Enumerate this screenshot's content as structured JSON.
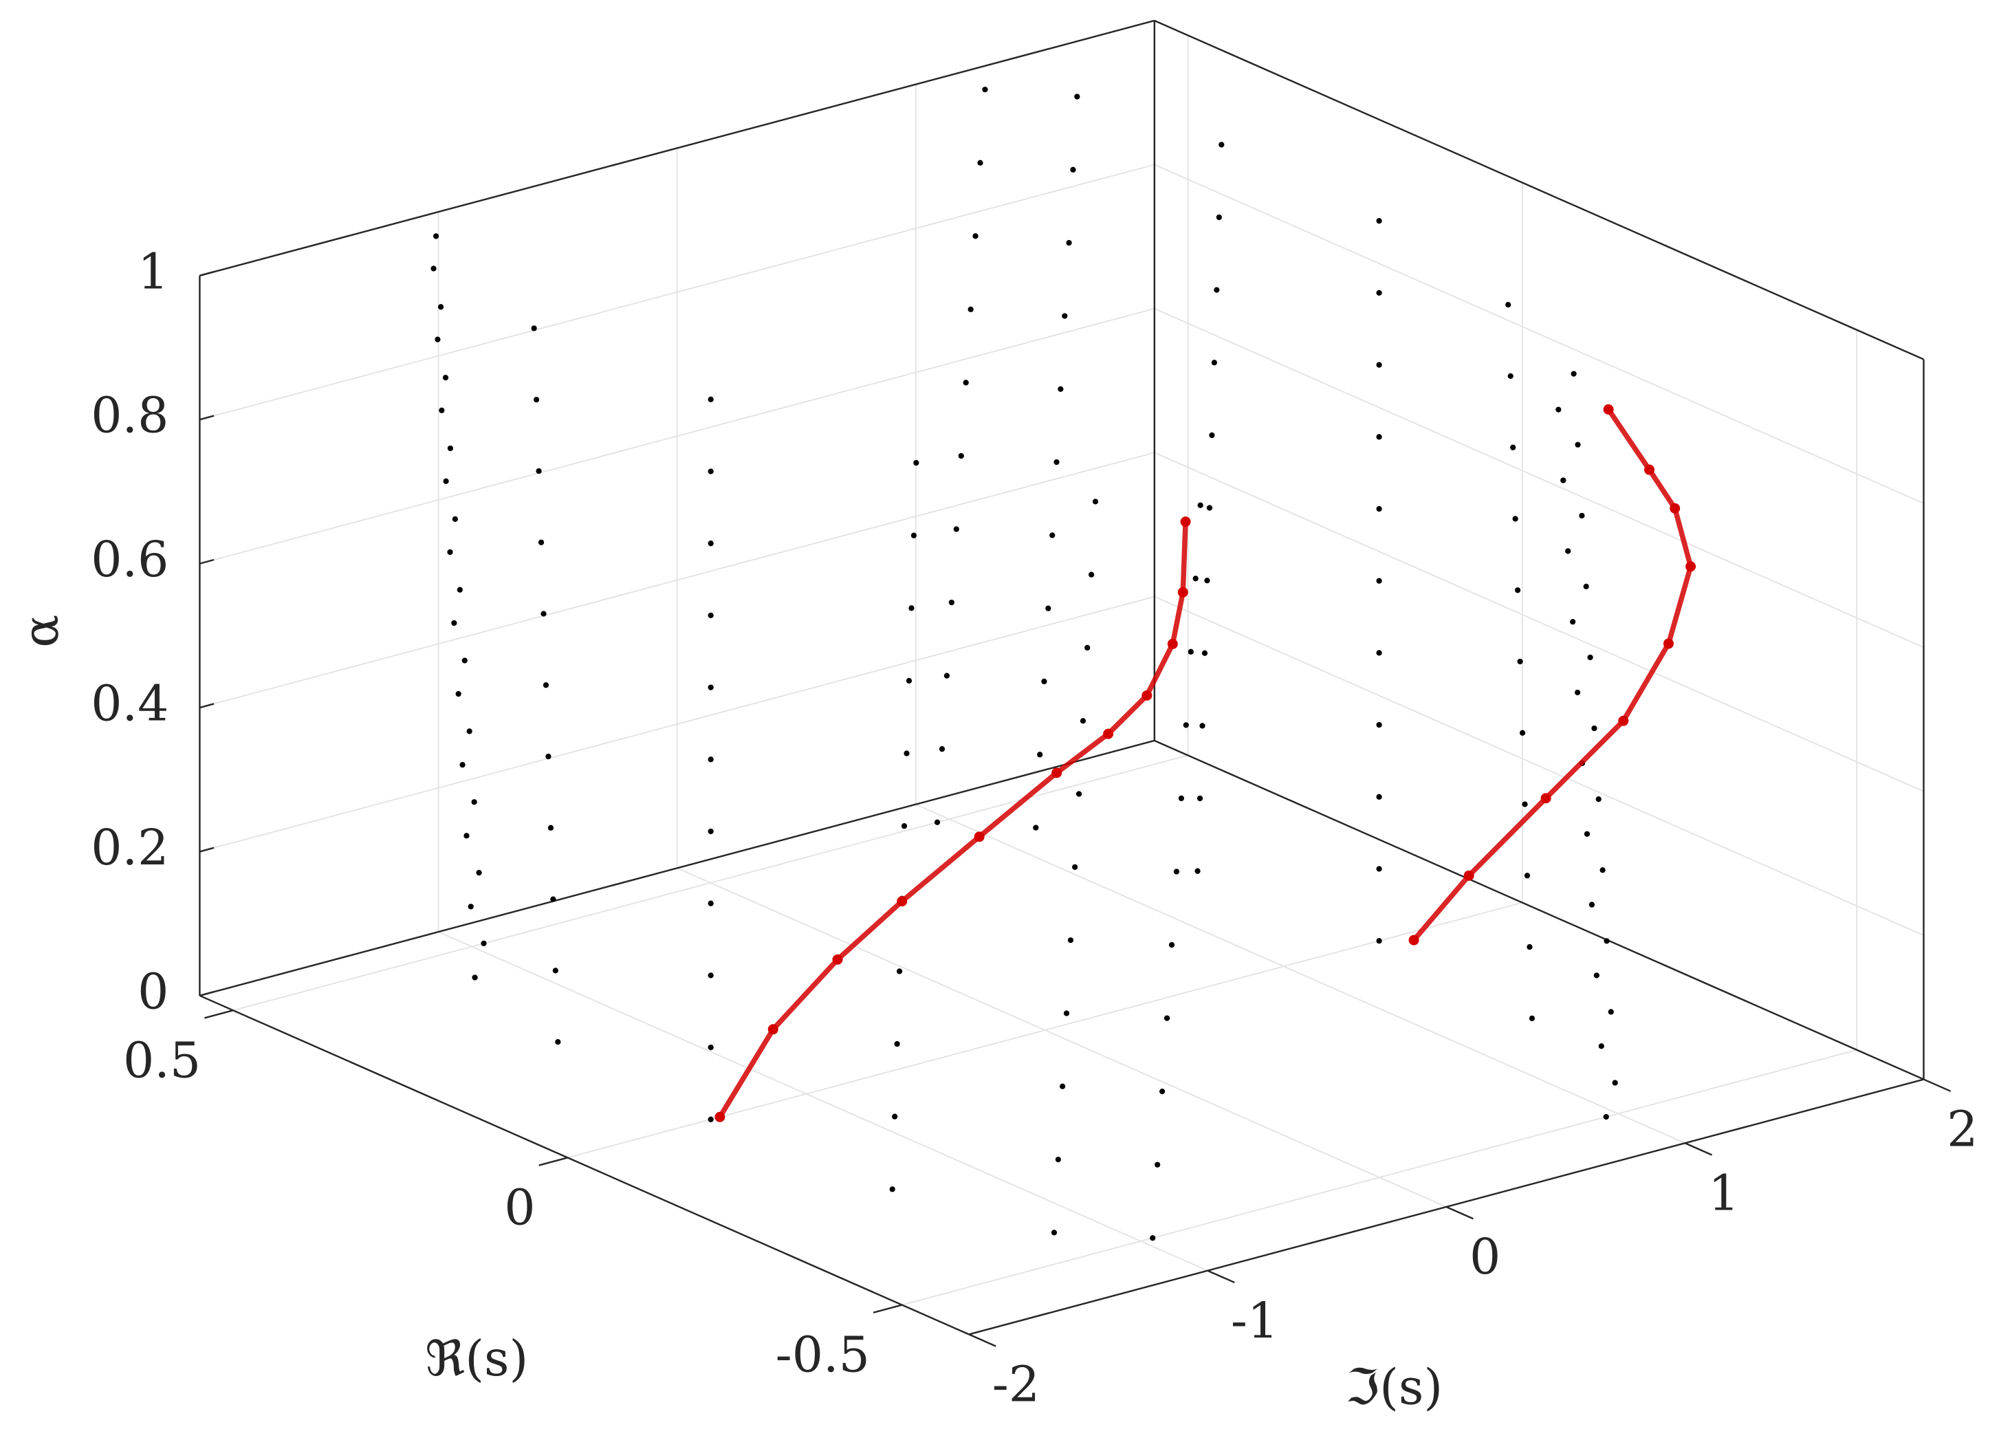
{
  "chart_data": {
    "type": "scatter3d",
    "xlabel": "ℜ(s)",
    "ylabel": "ℑ(s)",
    "zlabel": "α",
    "xlim": [
      -0.6,
      0.55
    ],
    "ylim": [
      -2,
      2
    ],
    "zlim": [
      0,
      1
    ],
    "xticks": [
      -0.5,
      0,
      0.5
    ],
    "yticks": [
      -2,
      -1,
      0,
      1,
      2
    ],
    "zticks": [
      0,
      0.2,
      0.4,
      0.6,
      0.8,
      1
    ],
    "grid": true,
    "series": [
      {
        "color": "#000000",
        "x": [
          0.5,
          0.433,
          0.25,
          0,
          -0.25,
          -0.433,
          -0.5,
          0.5,
          0.433,
          0.25,
          0,
          -0.25,
          -0.433,
          -0.5,
          0.5,
          0.433,
          0.25,
          0,
          -0.25,
          -0.433,
          -0.5,
          0.5,
          0.433,
          0.25,
          0,
          -0.25,
          -0.433,
          -0.5,
          0.5,
          0.433,
          0.25,
          0,
          -0.25,
          -0.433,
          -0.5,
          0.5,
          0.433,
          0.25,
          0,
          -0.25,
          -0.433,
          -0.5,
          0.5,
          0.433,
          0.25,
          0,
          -0.25,
          -0.433,
          -0.5,
          0.5,
          0.433,
          0.25,
          0,
          -0.25,
          -0.433,
          -0.5,
          0.5,
          0.433,
          0.25,
          0,
          -0.25,
          -0.433,
          -0.5,
          0.5,
          0.433,
          0.25,
          0,
          -0.25,
          -0.433,
          -0.5,
          0.5,
          0.433,
          0.25,
          0,
          -0.25,
          -0.433,
          -0.5
        ],
        "y": [
          -0.95,
          -1.175,
          -1.34,
          -1.4,
          -1.34,
          -1.175,
          -0.95,
          -0.97,
          -1.192,
          -1.35,
          -1.4,
          -1.33,
          -1.158,
          -0.93,
          -0.99,
          -1.21,
          -1.36,
          -1.4,
          -1.32,
          -1.14,
          -0.91,
          -1.01,
          -1.227,
          -1.37,
          -1.4,
          -1.31,
          -1.123,
          -0.89,
          -1.03,
          -1.244,
          -1.38,
          -1.4,
          -1.3,
          -1.106,
          -0.87,
          -1.05,
          -1.262,
          -1.39,
          -1.4,
          -1.29,
          -1.088,
          -0.85,
          -1.07,
          -1.279,
          -1.4,
          -1.4,
          -1.28,
          -1.071,
          -0.83,
          -1.09,
          -1.296,
          -1.41,
          -1.4,
          -1.27,
          -1.054,
          -0.81,
          -1.11,
          -1.314,
          -1.42,
          -1.4,
          -1.26,
          -1.036,
          -0.79,
          -1.13,
          -1.331,
          -1.43,
          -1.4,
          -1.25,
          -1.019,
          -0.77,
          -1.15,
          -1.348,
          -1.44,
          -1.4,
          -1.24,
          -1.002,
          -0.75
        ],
        "z": [
          0,
          0,
          0,
          0,
          0,
          0,
          0,
          0.1,
          0.1,
          0.1,
          0.1,
          0.1,
          0.1,
          0.1,
          0.2,
          0.2,
          0.2,
          0.2,
          0.2,
          0.2,
          0.2,
          0.3,
          0.3,
          0.3,
          0.3,
          0.3,
          0.3,
          0.3,
          0.4,
          0.4,
          0.4,
          0.4,
          0.4,
          0.4,
          0.4,
          0.5,
          0.5,
          0.5,
          0.5,
          0.5,
          0.5,
          0.5,
          0.6,
          0.6,
          0.6,
          0.6,
          0.6,
          0.6,
          0.6,
          0.7,
          0.7,
          0.7,
          0.7,
          0.7,
          0.7,
          0.7,
          0.8,
          0.8,
          0.8,
          0.8,
          0.8,
          0.8,
          0.8,
          0.9,
          0.9,
          0.9,
          0.9,
          0.9,
          0.9,
          0.9,
          1,
          1,
          1,
          1,
          1,
          1,
          1
        ]
      },
      {
        "color": "#000000",
        "x": [
          0.5,
          0.433,
          0.25,
          0,
          -0.25,
          -0.433,
          -0.5,
          0.5,
          0.433,
          0.25,
          0,
          -0.25,
          -0.433,
          -0.5,
          0.5,
          0.433,
          0.25,
          0,
          -0.25,
          -0.433,
          -0.5,
          0.5,
          0.433,
          0.25,
          0,
          -0.25,
          -0.433,
          -0.5,
          0.5,
          0.433,
          0.25,
          0,
          -0.25,
          -0.433,
          -0.5,
          0.5,
          0.433,
          0.25,
          0,
          -0.25,
          -0.433,
          -0.5,
          0.5,
          0.433,
          0.25,
          0,
          -0.25,
          -0.433,
          -0.5,
          0.5,
          0.433,
          0.25,
          0,
          -0.25,
          -0.433,
          -0.5,
          0.5,
          0.433,
          0.25,
          0,
          -0.25,
          -0.433,
          -0.5,
          0.5,
          0.433,
          0.25,
          0,
          -0.25,
          -0.433,
          -0.5,
          0.5,
          0.433,
          0.25,
          0,
          -0.25,
          -0.433,
          -0.5
        ],
        "y": [
          0.95,
          1.175,
          1.34,
          1.4,
          1.34,
          1.175,
          0.95,
          0.97,
          1.192,
          1.35,
          1.4,
          1.33,
          1.158,
          0.93,
          0.99,
          1.21,
          1.36,
          1.4,
          1.32,
          1.14,
          0.91,
          1.01,
          1.227,
          1.37,
          1.4,
          1.31,
          1.123,
          0.89,
          1.03,
          1.244,
          1.38,
          1.4,
          1.3,
          1.106,
          0.87,
          1.05,
          1.262,
          1.39,
          1.4,
          1.29,
          1.088,
          0.85,
          1.07,
          1.279,
          1.4,
          1.4,
          1.28,
          1.071,
          0.83,
          1.09,
          1.296,
          1.41,
          1.4,
          1.27,
          1.054,
          0.81,
          1.11,
          1.314,
          1.42,
          1.4,
          1.26,
          1.036,
          0.79,
          1.13,
          1.331,
          1.43,
          1.4,
          1.25,
          1.019,
          0.77,
          1.15,
          1.348,
          1.44,
          1.4,
          1.24,
          1.002,
          0.75
        ],
        "z": [
          0,
          0,
          0,
          0,
          0,
          0,
          0,
          0.1,
          0.1,
          0.1,
          0.1,
          0.1,
          0.1,
          0.1,
          0.2,
          0.2,
          0.2,
          0.2,
          0.2,
          0.2,
          0.2,
          0.3,
          0.3,
          0.3,
          0.3,
          0.3,
          0.3,
          0.3,
          0.4,
          0.4,
          0.4,
          0.4,
          0.4,
          0.4,
          0.4,
          0.5,
          0.5,
          0.5,
          0.5,
          0.5,
          0.5,
          0.5,
          0.6,
          0.6,
          0.6,
          0.6,
          0.6,
          0.6,
          0.6,
          0.7,
          0.7,
          0.7,
          0.7,
          0.7,
          0.7,
          0.7,
          0.8,
          0.8,
          0.8,
          0.8,
          0.8,
          0.8,
          0.8,
          0.9,
          0.9,
          0.9,
          0.9,
          0.9,
          0.9,
          0.9,
          1,
          1,
          1,
          1,
          1,
          1,
          1
        ]
      },
      {
        "color": "#d40000",
        "x": [
          0,
          0,
          0,
          0,
          0,
          0,
          0,
          0,
          0,
          0,
          0
        ],
        "y": [
          -1.362,
          -1.139,
          -0.869,
          -0.599,
          -0.275,
          0.049,
          0.265,
          0.427,
          0.535,
          0.578,
          0.589
        ],
        "z": [
          0,
          0.102,
          0.175,
          0.232,
          0.293,
          0.353,
          0.388,
          0.427,
          0.489,
          0.557,
          0.654
        ]
      },
      {
        "color": "#d40000",
        "x": [
          -0.018,
          -0.065,
          -0.173,
          -0.251,
          -0.296,
          -0.328,
          -0.318,
          -0.298,
          -0.254
        ],
        "y": [
          1.495,
          1.594,
          1.614,
          1.72,
          1.783,
          1.786,
          1.748,
          1.697,
          1.649
        ],
        "z": [
          0,
          0.1,
          0.25,
          0.38,
          0.5,
          0.62,
          0.7,
          0.75,
          0.82
        ]
      }
    ]
  }
}
